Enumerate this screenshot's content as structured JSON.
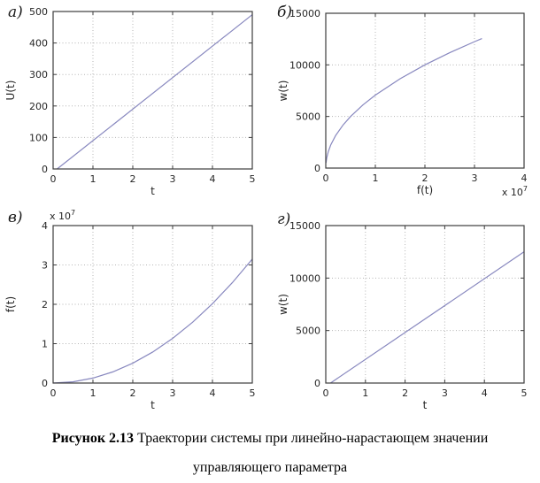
{
  "figure": {
    "caption": {
      "bold": "Рисунок 2.13",
      "rest": " Траектории системы при линейно-нарастающем значении",
      "line2": "управляющего параметра"
    }
  },
  "colors": {
    "line": "#8888bf",
    "axis": "#3d3d3d",
    "grid": "#b5b5b5",
    "text": "#262626",
    "background": "#ffffff"
  },
  "chart_data": [
    {
      "id": "panel-a",
      "panel_label": "а)",
      "type": "line",
      "title": "",
      "xlabel": "t",
      "ylabel": "U(t)",
      "xlim": [
        0,
        5
      ],
      "ylim": [
        0,
        500
      ],
      "xticks": [
        0,
        1,
        2,
        3,
        4,
        5
      ],
      "xtick_labels": [
        "0",
        "1",
        "2",
        "3",
        "4",
        "5"
      ],
      "yticks": [
        0,
        100,
        200,
        300,
        400,
        500
      ],
      "ytick_labels": [
        "0",
        "100",
        "200",
        "300",
        "400",
        "500"
      ],
      "grid": true,
      "exponent": null,
      "series": [
        {
          "name": "U(t)",
          "x": [
            0.1,
            5
          ],
          "y": [
            0,
            490
          ]
        }
      ]
    },
    {
      "id": "panel-b",
      "panel_label": "б)",
      "type": "line",
      "title": "",
      "xlabel": "f(t)",
      "ylabel": "w(t)",
      "xlim": [
        0,
        40000000
      ],
      "ylim": [
        0,
        15000
      ],
      "xticks": [
        0,
        10000000,
        20000000,
        30000000,
        40000000
      ],
      "xtick_labels": [
        "0",
        "1",
        "2",
        "3",
        "4"
      ],
      "yticks": [
        0,
        5000,
        10000,
        15000
      ],
      "ytick_labels": [
        "0",
        "5000",
        "10000",
        "15000"
      ],
      "grid": true,
      "exponent": {
        "text": "x 10",
        "sup": "7",
        "position": "bottom-right"
      },
      "series": [
        {
          "name": "w(t)",
          "x": [
            50000,
            200000,
            500000,
            1000000,
            2000000,
            3500000,
            5000000,
            7500000,
            10000000,
            15000000,
            20000000,
            25000000,
            30000000,
            31500000
          ],
          "y": [
            500,
            1000,
            1581,
            2236,
            3162,
            4183,
            5000,
            6124,
            7071,
            8660,
            10000,
            11180,
            12247,
            12550
          ]
        }
      ]
    },
    {
      "id": "panel-v",
      "panel_label": "в)",
      "type": "line",
      "title": "",
      "xlabel": "t",
      "ylabel": "f(t)",
      "xlim": [
        0,
        5
      ],
      "ylim": [
        0,
        40000000
      ],
      "xticks": [
        0,
        1,
        2,
        3,
        4,
        5
      ],
      "xtick_labels": [
        "0",
        "1",
        "2",
        "3",
        "4",
        "5"
      ],
      "yticks": [
        0,
        10000000,
        20000000,
        30000000,
        40000000
      ],
      "ytick_labels": [
        "0",
        "1",
        "2",
        "3",
        "4"
      ],
      "grid": true,
      "exponent": {
        "text": "x 10",
        "sup": "7",
        "position": "top-left"
      },
      "series": [
        {
          "name": "f(t)",
          "x": [
            0,
            0.5,
            1,
            1.5,
            2,
            2.5,
            3,
            3.5,
            4,
            4.5,
            5
          ],
          "y": [
            0,
            315000,
            1260000,
            2835000,
            5040000,
            7875000,
            11340000,
            15435000,
            20160000,
            25515000,
            31500000
          ]
        }
      ]
    },
    {
      "id": "panel-g",
      "panel_label": "г)",
      "type": "line",
      "title": "",
      "xlabel": "t",
      "ylabel": "w(t)",
      "xlim": [
        0,
        5
      ],
      "ylim": [
        0,
        15000
      ],
      "xticks": [
        0,
        1,
        2,
        3,
        4,
        5
      ],
      "xtick_labels": [
        "0",
        "1",
        "2",
        "3",
        "4",
        "5"
      ],
      "yticks": [
        0,
        5000,
        10000,
        15000
      ],
      "ytick_labels": [
        "0",
        "5000",
        "10000",
        "15000"
      ],
      "grid": true,
      "exponent": null,
      "series": [
        {
          "name": "w(t)",
          "x": [
            0.12,
            5
          ],
          "y": [
            0,
            12500
          ]
        }
      ]
    }
  ]
}
